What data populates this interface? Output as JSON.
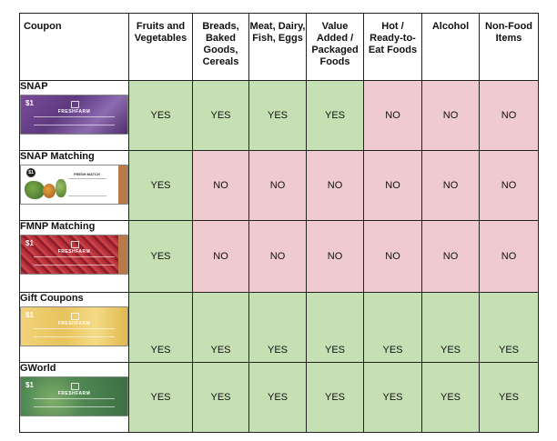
{
  "table": {
    "headers": [
      "Coupon",
      "Fruits and Vegetables",
      "Breads, Baked Goods, Cereals",
      "Meat, Dairy, Fish, Eggs",
      "Value Added / Packaged Foods",
      "Hot / Ready-to-Eat Foods",
      "Alcohol",
      "Non-Food Items"
    ],
    "rows": [
      {
        "name": "SNAP",
        "card_amount": "$1",
        "card_brand": "FRESHFARM",
        "values": [
          "YES",
          "YES",
          "YES",
          "YES",
          "NO",
          "NO",
          "NO"
        ]
      },
      {
        "name": "SNAP Matching",
        "card_amount": "$1",
        "card_brand": "FRESH MATCH",
        "values": [
          "YES",
          "NO",
          "NO",
          "NO",
          "NO",
          "NO",
          "NO"
        ]
      },
      {
        "name": "FMNP Matching",
        "card_amount": "$1",
        "card_brand": "FRESHFARM",
        "values": [
          "YES",
          "NO",
          "NO",
          "NO",
          "NO",
          "NO",
          "NO"
        ]
      },
      {
        "name": "Gift Coupons",
        "card_amount": "$1",
        "card_brand": "FRESHFARM",
        "values": [
          "YES",
          "YES",
          "YES",
          "YES",
          "YES",
          "YES",
          "YES"
        ]
      },
      {
        "name": "GWorld",
        "card_amount": "$1",
        "card_brand": "FRESHFARM",
        "values": [
          "YES",
          "YES",
          "YES",
          "YES",
          "YES",
          "YES",
          "YES"
        ]
      }
    ]
  },
  "colors": {
    "yes": "#c6e0b4",
    "no": "#efcacf",
    "border": "#222222"
  },
  "icons": [
    "snap-coupon-image",
    "snap-matching-coupon-image",
    "fmnp-matching-coupon-image",
    "gift-coupon-image",
    "gworld-coupon-image"
  ]
}
